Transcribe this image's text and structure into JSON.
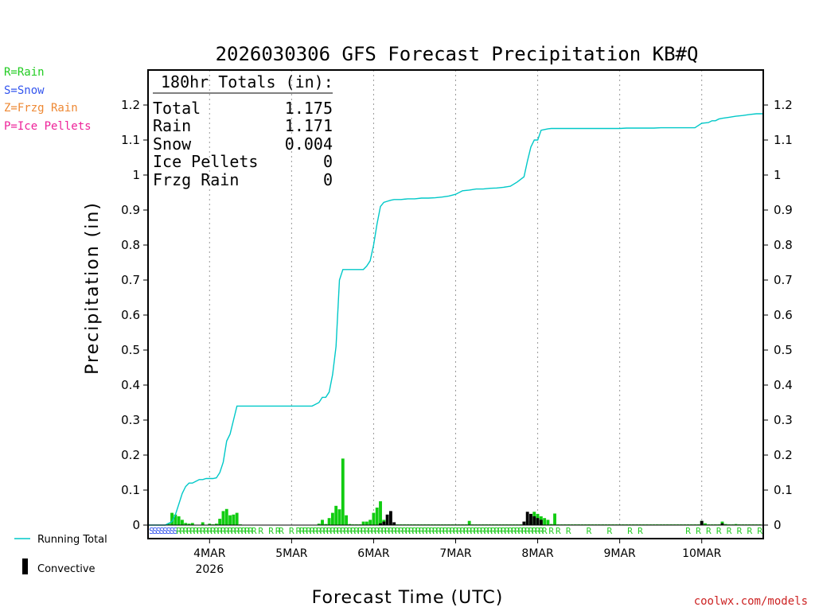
{
  "chart_data": {
    "type": "bar+line",
    "title": "2026030306 GFS Forecast Precipitation KB#Q",
    "xlabel": "Forecast Time (UTC)",
    "ylabel": "Precipitation (in)",
    "ylim": [
      0,
      1.3
    ],
    "yticks": [
      0,
      0.1,
      0.2,
      0.3,
      0.4,
      0.5,
      0.6,
      0.7,
      0.8,
      0.9,
      1,
      1.1,
      1.2
    ],
    "ytick_labels": [
      "0",
      "0.1",
      "0.2",
      "0.3",
      "0.4",
      "0.5",
      "0.6",
      "0.7",
      "0.8",
      "0.9",
      "1",
      "1.1",
      "1.2"
    ],
    "x_unit": "forecast hour",
    "xlim": [
      0,
      180
    ],
    "day_ticks": [
      {
        "hour": 18,
        "label": "4MAR",
        "sublabel": "2026"
      },
      {
        "hour": 42,
        "label": "5MAR",
        "sublabel": ""
      },
      {
        "hour": 66,
        "label": "6MAR",
        "sublabel": ""
      },
      {
        "hour": 90,
        "label": "7MAR",
        "sublabel": ""
      },
      {
        "hour": 114,
        "label": "8MAR",
        "sublabel": ""
      },
      {
        "hour": 138,
        "label": "9MAR",
        "sublabel": ""
      },
      {
        "hour": 162,
        "label": "10MAR",
        "sublabel": ""
      }
    ],
    "grid": "vertical dotted at day boundaries",
    "totals_box": {
      "header": "180hr Totals (in):",
      "rows": [
        {
          "label": "Total",
          "value": "1.175"
        },
        {
          "label": "Rain",
          "value": "1.171"
        },
        {
          "label": "Snow",
          "value": "0.004"
        },
        {
          "label": "Ice Pellets",
          "value": "0"
        },
        {
          "label": "Frzg Rain",
          "value": "0"
        }
      ]
    },
    "precip_type_legend": [
      {
        "label": "R=Rain",
        "color": "#22cc22"
      },
      {
        "label": "S=Snow",
        "color": "#3355ee"
      },
      {
        "label": "Z=Frzg Rain",
        "color": "#ee8833"
      },
      {
        "label": "P=Ice Pellets",
        "color": "#ee2299"
      }
    ],
    "series_legend": [
      {
        "label": "Running Total",
        "color": "#00c8c8"
      },
      {
        "label": "Convective",
        "color": "#000000"
      }
    ],
    "running_total": {
      "color": "#00c8c8",
      "hours": [
        0,
        5,
        7,
        8,
        9,
        10,
        11,
        12,
        13,
        14,
        15,
        16,
        17,
        18,
        19,
        20,
        21,
        22,
        23,
        24,
        25,
        26,
        27,
        28,
        29,
        30,
        32,
        34,
        36,
        38,
        40,
        42,
        44,
        46,
        48,
        50,
        51,
        52,
        53,
        54,
        55,
        56,
        57,
        58,
        59,
        60,
        61,
        62,
        63,
        64,
        65,
        66,
        67,
        68,
        69,
        70,
        71,
        72,
        73,
        74,
        76,
        78,
        80,
        82,
        84,
        86,
        88,
        90,
        92,
        94,
        96,
        98,
        100,
        102,
        104,
        106,
        108,
        110,
        111,
        112,
        113,
        114,
        115,
        116,
        117,
        118,
        119,
        120,
        122,
        124,
        126,
        128,
        130,
        132,
        134,
        136,
        138,
        140,
        142,
        144,
        146,
        148,
        150,
        152,
        154,
        156,
        158,
        160,
        162,
        164,
        165,
        166,
        167,
        168,
        170,
        172,
        174,
        176,
        178,
        180
      ],
      "values": [
        0,
        0,
        0.01,
        0.03,
        0.06,
        0.09,
        0.11,
        0.12,
        0.12,
        0.125,
        0.13,
        0.13,
        0.133,
        0.133,
        0.133,
        0.135,
        0.15,
        0.18,
        0.24,
        0.26,
        0.3,
        0.34,
        0.34,
        0.34,
        0.34,
        0.34,
        0.34,
        0.34,
        0.34,
        0.34,
        0.34,
        0.34,
        0.34,
        0.34,
        0.34,
        0.35,
        0.365,
        0.365,
        0.38,
        0.43,
        0.51,
        0.7,
        0.73,
        0.73,
        0.73,
        0.73,
        0.73,
        0.73,
        0.73,
        0.74,
        0.755,
        0.8,
        0.86,
        0.91,
        0.922,
        0.925,
        0.928,
        0.93,
        0.93,
        0.93,
        0.932,
        0.932,
        0.934,
        0.934,
        0.935,
        0.937,
        0.94,
        0.945,
        0.955,
        0.957,
        0.96,
        0.96,
        0.962,
        0.963,
        0.965,
        0.968,
        0.98,
        0.995,
        1.04,
        1.08,
        1.1,
        1.1,
        1.128,
        1.13,
        1.132,
        1.133,
        1.133,
        1.133,
        1.133,
        1.133,
        1.133,
        1.133,
        1.133,
        1.133,
        1.133,
        1.133,
        1.133,
        1.134,
        1.134,
        1.134,
        1.134,
        1.134,
        1.135,
        1.135,
        1.135,
        1.135,
        1.135,
        1.135,
        1.148,
        1.15,
        1.155,
        1.155,
        1.16,
        1.162,
        1.165,
        1.168,
        1.17,
        1.173,
        1.175,
        1.175
      ]
    },
    "bar_width_hours": 0.9,
    "precip_bars": {
      "color": "#11cc11",
      "hours": [
        6,
        7,
        8,
        9,
        10,
        11,
        12,
        13,
        16,
        18,
        19,
        20,
        21,
        22,
        23,
        24,
        25,
        26,
        27,
        50,
        51,
        52,
        53,
        54,
        55,
        56,
        57,
        58,
        59,
        60,
        61,
        62,
        63,
        64,
        65,
        66,
        67,
        68,
        69,
        70,
        71,
        72,
        73,
        74,
        75,
        76,
        77,
        78,
        79,
        80,
        81,
        82,
        83,
        84,
        85,
        86,
        87,
        88,
        89,
        90,
        91,
        92,
        93,
        94,
        95,
        96,
        97,
        98,
        99,
        100,
        101,
        102,
        103,
        104,
        105,
        106,
        107,
        108,
        109,
        110,
        111,
        112,
        113,
        114,
        115,
        116,
        117,
        118,
        119,
        120,
        121,
        122,
        123,
        124,
        125,
        126,
        127,
        128,
        129,
        130,
        131,
        132,
        133,
        134,
        135,
        136,
        137,
        138,
        139,
        140,
        141,
        142,
        143,
        144,
        145,
        146,
        147,
        148,
        149,
        150,
        151,
        152,
        153,
        154,
        155,
        156,
        157,
        158,
        159,
        160,
        161,
        162,
        163,
        164,
        165,
        166,
        167,
        168,
        169,
        170,
        171,
        172,
        173,
        174,
        175,
        176,
        177,
        178,
        179
      ],
      "values": [
        0.005,
        0.035,
        0.03,
        0.025,
        0.015,
        0.006,
        0.004,
        0.006,
        0.008,
        0.004,
        0.002,
        0.004,
        0.018,
        0.04,
        0.046,
        0.028,
        0.03,
        0.035,
        0.002,
        0.004,
        0.015,
        0.003,
        0.02,
        0.035,
        0.055,
        0.045,
        0.19,
        0.028,
        0.003,
        0.002,
        0.002,
        0.002,
        0.01,
        0.01,
        0.015,
        0.035,
        0.05,
        0.068,
        0.015,
        0.002,
        0.002,
        0.002,
        0.002,
        0.002,
        0.002,
        0.002,
        0.002,
        0.002,
        0.002,
        0.002,
        0.002,
        0.002,
        0.002,
        0.002,
        0.002,
        0.002,
        0.002,
        0.002,
        0.002,
        0.002,
        0.002,
        0.002,
        0.002,
        0.012,
        0.002,
        0.002,
        0.002,
        0.002,
        0.002,
        0.002,
        0.002,
        0.002,
        0.002,
        0.002,
        0.002,
        0.002,
        0.002,
        0.002,
        0.002,
        0.002,
        0.012,
        0.01,
        0.038,
        0.032,
        0.025,
        0.02,
        0.015,
        0.003,
        0.033,
        0.002,
        0.002,
        0.002,
        0.002,
        0.002,
        0.002,
        0.002,
        0.002,
        0.002,
        0.002,
        0.002,
        0.002,
        0.002,
        0.002,
        0.002,
        0.002,
        0.002,
        0.002,
        0.002,
        0.002,
        0.002,
        0.002,
        0.002,
        0.002,
        0.002,
        0.002,
        0.002,
        0.002,
        0.002,
        0.002,
        0.002,
        0.002,
        0.002,
        0.002,
        0.002,
        0.002,
        0.002,
        0.002,
        0.002,
        0.002,
        0.002,
        0.002,
        0.012,
        0.005,
        0.002,
        0.002,
        0.002,
        0.002,
        0.01,
        0.003,
        0.002,
        0.002,
        0.003,
        0.002,
        0.002,
        0.002,
        0.002,
        0.002,
        0.002,
        0.002
      ]
    },
    "convective_bars": {
      "color": "#000000",
      "hours": [
        68,
        69,
        70,
        71,
        72,
        110,
        111,
        112,
        113,
        114,
        115,
        162,
        168
      ],
      "values": [
        0.005,
        0.01,
        0.03,
        0.04,
        0.008,
        0.01,
        0.038,
        0.032,
        0.025,
        0.02,
        0.015,
        0.012,
        0.005
      ]
    },
    "precip_type_row": {
      "snow_color": "#3355ee",
      "rain_color": "#22cc22",
      "snow_hours": [
        1,
        2,
        3,
        4,
        5,
        6,
        7,
        8
      ],
      "rain_hours": [
        9,
        10,
        11,
        12,
        13,
        14,
        15,
        16,
        17,
        18,
        19,
        20,
        21,
        22,
        23,
        24,
        25,
        26,
        27,
        28,
        29,
        30,
        31,
        33,
        36,
        38,
        39,
        42,
        44,
        45,
        46,
        47,
        48,
        49,
        50,
        51,
        52,
        53,
        54,
        55,
        56,
        57,
        58,
        59,
        60,
        61,
        62,
        63,
        64,
        65,
        66,
        67,
        68,
        69,
        70,
        71,
        72,
        73,
        74,
        75,
        76,
        77,
        78,
        79,
        80,
        81,
        82,
        83,
        84,
        85,
        86,
        87,
        88,
        89,
        90,
        91,
        92,
        93,
        94,
        95,
        96,
        97,
        98,
        99,
        100,
        101,
        102,
        103,
        104,
        105,
        106,
        107,
        108,
        109,
        110,
        111,
        112,
        113,
        114,
        115,
        116,
        118,
        120,
        123,
        129,
        135,
        141,
        144,
        158,
        161,
        164,
        167,
        170,
        173,
        176,
        179
      ],
      "rain_letter": "R",
      "snow_letter": "S"
    }
  },
  "credit": {
    "text": "coolwx.com/models",
    "color": "#cc2222"
  }
}
